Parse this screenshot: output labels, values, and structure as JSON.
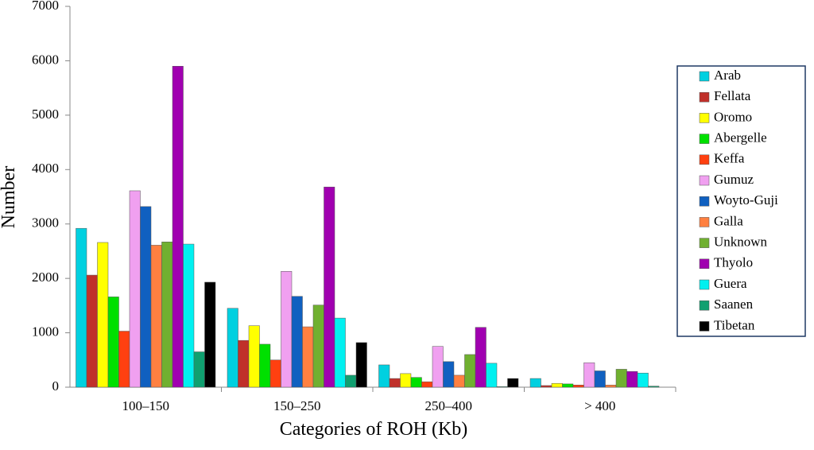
{
  "chart_data": {
    "type": "bar",
    "x_label": "Categories of ROH (Kb)",
    "y_label": "Number",
    "categories": [
      "100–150",
      "150–250",
      "250–400",
      "> 400"
    ],
    "ylim": [
      0,
      7000
    ],
    "yticks": [
      0,
      1000,
      2000,
      3000,
      4000,
      5000,
      6000,
      7000
    ],
    "series": [
      {
        "name": "Arab",
        "color": "#00d0e0",
        "values": [
          2920,
          1450,
          410,
          160
        ]
      },
      {
        "name": "Fellata",
        "color": "#c0302a",
        "values": [
          2060,
          860,
          160,
          30
        ]
      },
      {
        "name": "Oromo",
        "color": "#ffff00",
        "values": [
          2660,
          1130,
          250,
          70
        ]
      },
      {
        "name": "Abergelle",
        "color": "#00e000",
        "values": [
          1660,
          790,
          180,
          60
        ]
      },
      {
        "name": "Keffa",
        "color": "#ff4010",
        "values": [
          1030,
          500,
          100,
          40
        ]
      },
      {
        "name": "Gumuz",
        "color": "#f0a0f0",
        "values": [
          3610,
          2130,
          750,
          450
        ]
      },
      {
        "name": "Woyto-Guji",
        "color": "#1060c0",
        "values": [
          3320,
          1670,
          470,
          300
        ]
      },
      {
        "name": "Galla",
        "color": "#ff8040",
        "values": [
          2610,
          1110,
          220,
          40
        ]
      },
      {
        "name": "Unknown",
        "color": "#70b030",
        "values": [
          2670,
          1510,
          600,
          330
        ]
      },
      {
        "name": "Thyolo",
        "color": "#a000b0",
        "values": [
          5900,
          3680,
          1100,
          290
        ]
      },
      {
        "name": "Guera",
        "color": "#00f0f0",
        "values": [
          2630,
          1270,
          440,
          260
        ]
      },
      {
        "name": "Saanen",
        "color": "#10a070",
        "values": [
          650,
          220,
          10,
          20
        ]
      },
      {
        "name": "Tibetan",
        "color": "#000000",
        "values": [
          1930,
          820,
          160,
          0
        ]
      }
    ]
  }
}
